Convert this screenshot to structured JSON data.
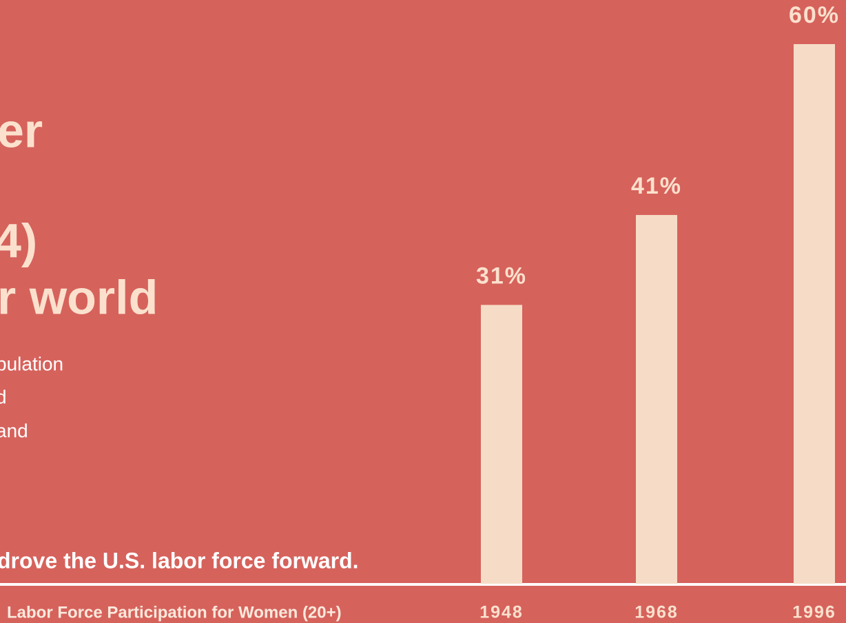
{
  "page": {
    "heading_lines": [
      "er",
      "4)",
      "r world"
    ],
    "body_lines": [
      "pulation",
      "d",
      " and"
    ],
    "lead": "drove the U.S. labor force forward."
  },
  "chart_data": {
    "type": "bar",
    "xlabel": "Labor Force Participation for Women (20+)",
    "categories": [
      "1948",
      "1968",
      "1996"
    ],
    "values": [
      31,
      41,
      60
    ],
    "value_labels": [
      "31%",
      "41%",
      "60%"
    ],
    "color": "#f6dcc6",
    "ylim": [
      0,
      60
    ]
  }
}
